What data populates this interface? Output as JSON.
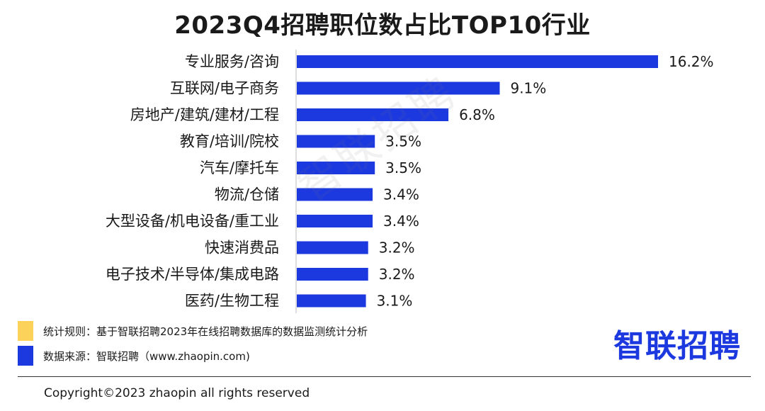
{
  "colors": {
    "bar": "#1c39e0",
    "rule_swatch": "#fdd25a",
    "source_swatch": "#1c39e0",
    "axis": "#bdbdbd"
  },
  "chart_data": {
    "type": "bar",
    "orientation": "horizontal",
    "title": "2023Q4招聘职位数占比TOP10行业",
    "categories": [
      "专业服务/咨询",
      "互联网/电子商务",
      "房地产/建筑/建材/工程",
      "教育/培训/院校",
      "汽车/摩托车",
      "物流/仓储",
      "大型设备/机电设备/重工业",
      "快速消费品",
      "电子技术/半导体/集成电路",
      "医药/生物工程"
    ],
    "values": [
      16.2,
      9.1,
      6.8,
      3.5,
      3.5,
      3.4,
      3.4,
      3.2,
      3.2,
      3.1
    ],
    "value_labels": [
      "16.2%",
      "9.1%",
      "6.8%",
      "3.5%",
      "3.5%",
      "3.4%",
      "3.4%",
      "3.2%",
      "3.2%",
      "3.1%"
    ],
    "unit": "%",
    "xlim": [
      0,
      16.2
    ],
    "grid": false,
    "legend": "none"
  },
  "watermark": "智联招聘",
  "notes": {
    "rule": "统计规则：基于智联招聘2023年在线招聘数据库的数据监测统计分析",
    "source": "数据来源：智联招聘（www.zhaopin.com)"
  },
  "brand": {
    "logo_text": "智联招聘"
  },
  "footer": {
    "copyright": "Copyright©2023 zhaopin all rights reserved"
  }
}
